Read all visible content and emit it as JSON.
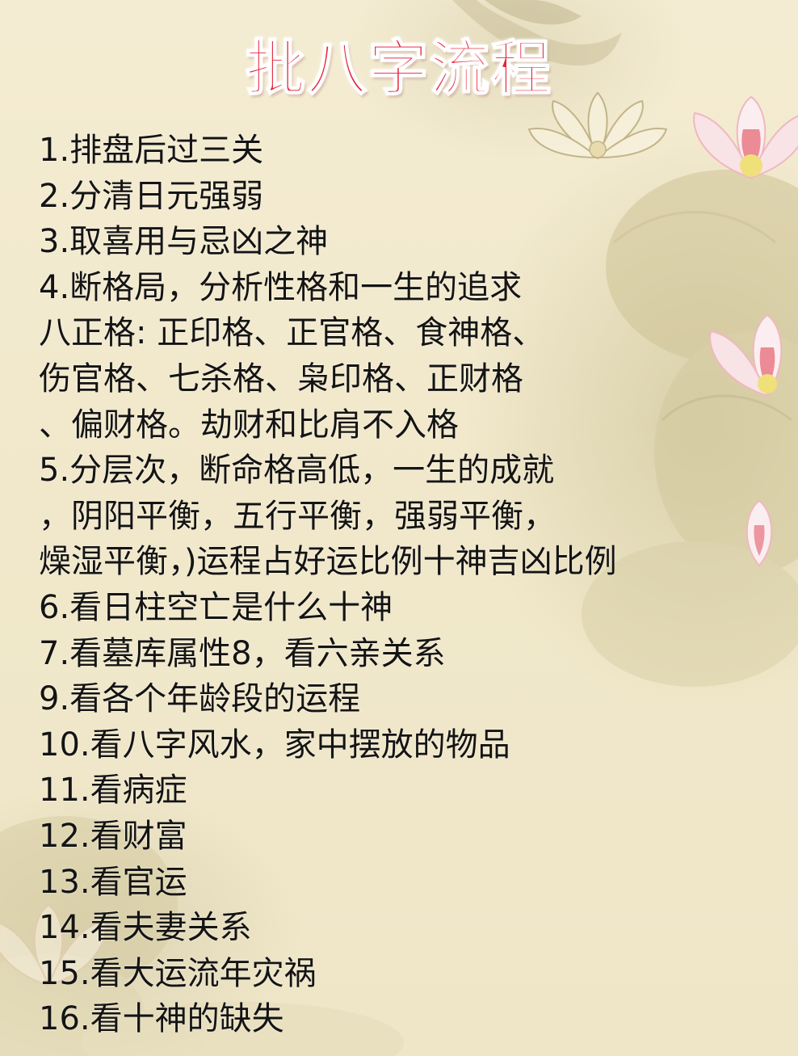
{
  "title": "批八字流程",
  "lines": [
    "1.排盘后过三关",
    "2.分清日元强弱",
    "3.取喜用与忌凶之神",
    "4.断格局，分析性格和一生的追求",
    "八正格: 正印格、正官格、食神格、",
    "伤官格、七杀格、枭印格、正财格",
    "、偏财格。劫财和比肩不入格",
    "5.分层次，断命格高低，一生的成就",
    "，阴阳平衡，五行平衡，强弱平衡，",
    "燥湿平衡，)运程占好运比例十神吉凶比例",
    "6.看日柱空亡是什么十神",
    "7.看墓库属性8，看六亲关系",
    "9.看各个年龄段的运程",
    "10.看八字风水，家中摆放的物品",
    "11.看病症",
    "12.看财富",
    "13.看官运",
    "14.看夫妻关系",
    "15.看大运流年灾祸",
    "16.看十神的缺失"
  ],
  "colors": {
    "background": "#f2ead0",
    "title": "#e3263a",
    "text": "#141414",
    "lotus": "#f3c9cf",
    "leaf": "#cfc497"
  },
  "icons": [
    "lotus-flower-icon",
    "lotus-leaf-icon",
    "koi-fish-icon"
  ]
}
